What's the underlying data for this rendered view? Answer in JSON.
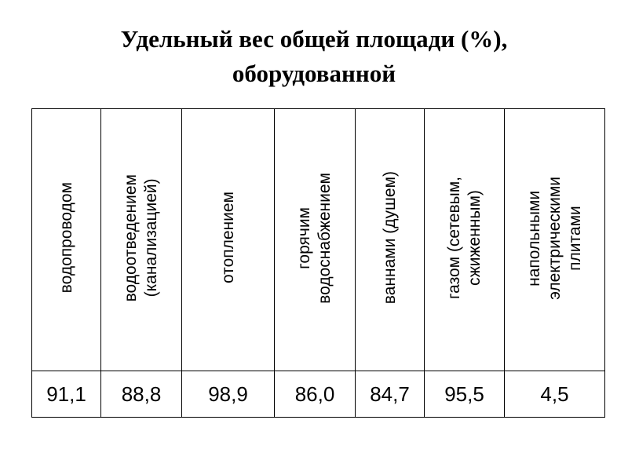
{
  "title": {
    "line1": "Удельный вес общей площади (%),",
    "line2": "оборудованной"
  },
  "table": {
    "headers": [
      "водопроводом",
      "водоотведением\n(канализацией)",
      "отоплением",
      "горячим\nводоснабжением",
      "ваннами (душем)",
      "газом (сетевым,\nсжиженным)",
      "напольными\nэлектрическими\nплитами"
    ],
    "values": [
      "91,1",
      "88,8",
      "98,9",
      "86,0",
      "84,7",
      "95,5",
      "4,5"
    ]
  }
}
